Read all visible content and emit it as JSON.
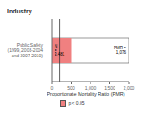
{
  "chart_data": {
    "type": "bar",
    "orientation": "horizontal",
    "title": "Industry",
    "categories": [
      "Public Safety (1999, 2003-2004 and 2007-2010)"
    ],
    "series": [
      {
        "values": [
          2000
        ],
        "color": "#ffffff"
      },
      {
        "name": "p < 0.05",
        "values": [
          500
        ],
        "color": "#f08080"
      }
    ],
    "reference_lines": [
      {
        "value": 200,
        "color": "#333333"
      }
    ],
    "annotations": [
      "N = 3,481",
      "PMR = 1,076"
    ],
    "xlabel": "Proportionate Mortality Ratio (PMR)",
    "xlim": [
      0,
      2000
    ],
    "xticks": [
      0,
      500,
      {
        "value": 1000,
        "label": "1,000"
      },
      {
        "value": 1500,
        "label": "1,500"
      },
      {
        "value": 2000,
        "label": "2,000"
      }
    ]
  }
}
